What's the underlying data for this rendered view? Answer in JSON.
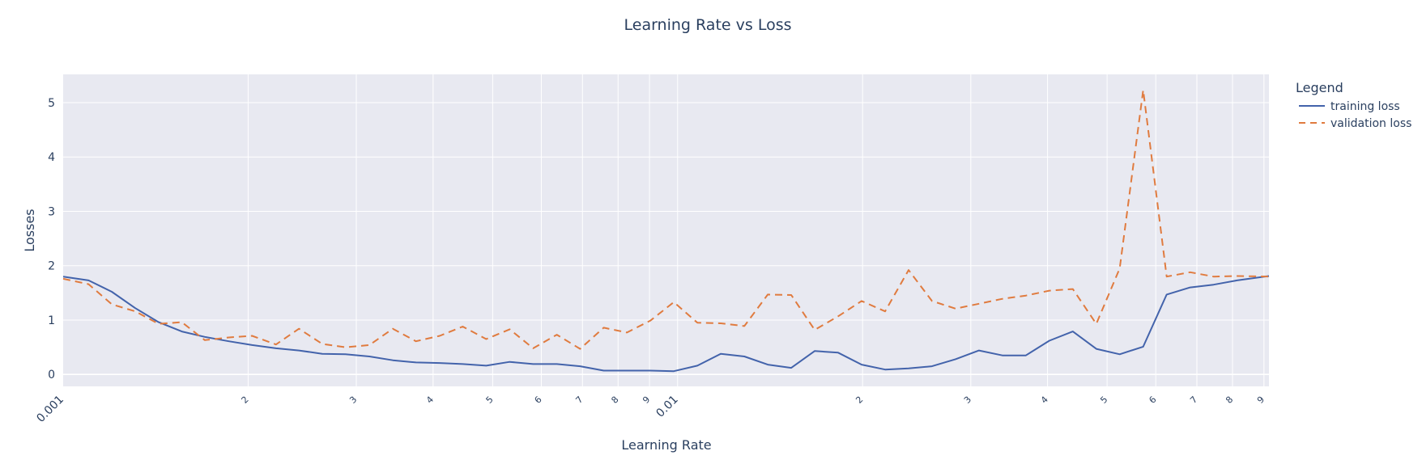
{
  "chart_data": {
    "type": "line",
    "title": "Learning Rate vs Loss",
    "xlabel": "Learning Rate",
    "ylabel": "Losses",
    "x_scale": "log",
    "xlim": [
      0.001,
      0.0917
    ],
    "ylim": [
      -0.22,
      5.52
    ],
    "grid": true,
    "legend": {
      "title": "Legend",
      "position": "right"
    },
    "x_ticks": [
      {
        "value": 0.001,
        "label": "0.001",
        "major": true
      },
      {
        "value": 0.002,
        "label": "2",
        "major": false
      },
      {
        "value": 0.003,
        "label": "3",
        "major": false
      },
      {
        "value": 0.004,
        "label": "4",
        "major": false
      },
      {
        "value": 0.005,
        "label": "5",
        "major": false
      },
      {
        "value": 0.006,
        "label": "6",
        "major": false
      },
      {
        "value": 0.007,
        "label": "7",
        "major": false
      },
      {
        "value": 0.008,
        "label": "8",
        "major": false
      },
      {
        "value": 0.009,
        "label": "9",
        "major": false
      },
      {
        "value": 0.01,
        "label": "0.01",
        "major": true
      },
      {
        "value": 0.02,
        "label": "2",
        "major": false
      },
      {
        "value": 0.03,
        "label": "3",
        "major": false
      },
      {
        "value": 0.04,
        "label": "4",
        "major": false
      },
      {
        "value": 0.05,
        "label": "5",
        "major": false
      },
      {
        "value": 0.06,
        "label": "6",
        "major": false
      },
      {
        "value": 0.07,
        "label": "7",
        "major": false
      },
      {
        "value": 0.08,
        "label": "8",
        "major": false
      },
      {
        "value": 0.09,
        "label": "9",
        "major": false
      }
    ],
    "y_ticks": [
      {
        "value": 0,
        "label": "0"
      },
      {
        "value": 1,
        "label": "1"
      },
      {
        "value": 2,
        "label": "2"
      },
      {
        "value": 3,
        "label": "3"
      },
      {
        "value": 4,
        "label": "4"
      },
      {
        "value": 5,
        "label": "5"
      }
    ],
    "x": [
      0.001,
      0.0011,
      0.0012,
      0.00131,
      0.00143,
      0.00156,
      0.0017,
      0.00186,
      0.00203,
      0.00222,
      0.00242,
      0.00264,
      0.00288,
      0.00315,
      0.00344,
      0.00375,
      0.0041,
      0.00447,
      0.00488,
      0.00533,
      0.00582,
      0.00636,
      0.00694,
      0.00758,
      0.00827,
      0.00903,
      0.00986,
      0.01077,
      0.01176,
      0.01284,
      0.01402,
      0.01531,
      0.01671,
      0.01825,
      0.01993,
      0.02176,
      0.02376,
      0.02594,
      0.02833,
      0.03093,
      0.03377,
      0.03688,
      0.04027,
      0.04397,
      0.04801,
      0.05242,
      0.05724,
      0.0625,
      0.06825,
      0.07452,
      0.08137,
      0.0917
    ],
    "series": [
      {
        "name": "training loss",
        "color": "#4363ab",
        "dash": "solid",
        "values": [
          1.8,
          1.73,
          1.52,
          1.22,
          0.96,
          0.79,
          0.69,
          0.61,
          0.54,
          0.48,
          0.44,
          0.38,
          0.37,
          0.33,
          0.26,
          0.22,
          0.21,
          0.19,
          0.16,
          0.23,
          0.19,
          0.19,
          0.15,
          0.07,
          0.07,
          0.07,
          0.06,
          0.16,
          0.38,
          0.33,
          0.18,
          0.12,
          0.43,
          0.4,
          0.18,
          0.09,
          0.11,
          0.15,
          0.28,
          0.44,
          0.35,
          0.35,
          0.62,
          0.79,
          0.47,
          0.37,
          0.51,
          1.47,
          1.6,
          1.65,
          1.73,
          1.81
        ]
      },
      {
        "name": "validation loss",
        "color": "#e07b3f",
        "dash": "dash",
        "values": [
          1.76,
          1.66,
          1.29,
          1.16,
          0.93,
          0.96,
          0.63,
          0.68,
          0.71,
          0.55,
          0.84,
          0.56,
          0.5,
          0.54,
          0.84,
          0.61,
          0.71,
          0.88,
          0.65,
          0.83,
          0.48,
          0.73,
          0.47,
          0.86,
          0.77,
          0.99,
          1.33,
          0.95,
          0.94,
          0.89,
          1.47,
          1.46,
          0.82,
          1.07,
          1.35,
          1.16,
          1.92,
          1.35,
          1.21,
          1.3,
          1.39,
          1.45,
          1.54,
          1.57,
          0.93,
          1.95,
          5.23,
          1.8,
          1.88,
          1.8,
          1.81,
          1.8
        ]
      }
    ]
  }
}
